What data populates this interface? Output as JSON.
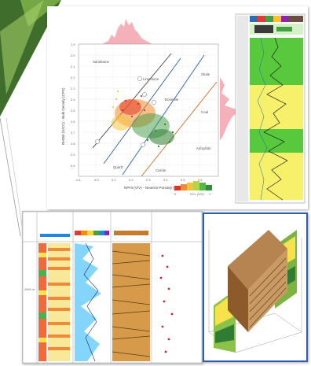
{
  "colors": {
    "accent_dark": "#3f6d2c",
    "accent_light": "#8bc34a",
    "crossplot_hist": "#f2a3ad",
    "log_fill_yellow": "#f7f06a",
    "log_fill_green": "#58c93c",
    "frame_blue": "#2d5fb0"
  },
  "crossplot": {
    "x_axis_label": "NPHI (V/V) - Neutron Porosity (CPS)",
    "y_axis_label": "RHOB (G/CC) - Bulk Density (CPS)",
    "x_ticks": [
      "-0.1",
      "0.0",
      "0.1",
      "0.2",
      "0.3",
      "0.4",
      "0.5",
      "0.6"
    ],
    "y_ticks": [
      "1.9",
      "2.0",
      "2.1",
      "2.2",
      "2.3",
      "2.4",
      "2.5",
      "2.6",
      "2.7",
      "2.8",
      "2.9",
      "3.0"
    ],
    "colorbar_label": "VCL (V/V)",
    "colorbar_ticks": [
      "0",
      "1"
    ],
    "annotations": [
      "Sandstone",
      "Limestone",
      "Dolomite",
      "Shale",
      "Quartz",
      "Calcite",
      "Coal",
      "Anhydrite"
    ]
  },
  "log_panel": {
    "depth_marker": "2600 m"
  },
  "render_3d": {
    "icons": [
      "cylinder-core-icon",
      "log-strip-icon"
    ]
  }
}
